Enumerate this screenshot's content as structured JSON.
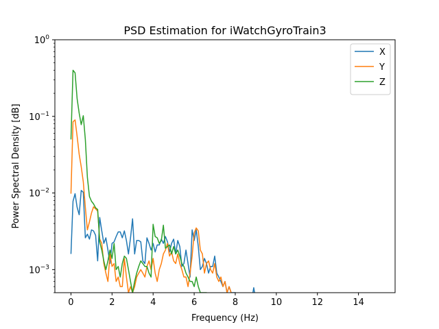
{
  "chart_data": {
    "type": "line",
    "title": "PSD Estimation for iWatchGyroTrain3",
    "xlabel": "Frequency (Hz)",
    "ylabel": "Power Spectral Density [dB]",
    "xlim": [
      -0.7833,
      15.7833
    ],
    "ylim": [
      0.0005,
      1
    ],
    "yscale": "log",
    "x_ticks": [
      0,
      2,
      4,
      6,
      8,
      10,
      12,
      14
    ],
    "x_tick_labels": [
      "0",
      "2",
      "4",
      "6",
      "8",
      "10",
      "12",
      "14"
    ],
    "y_ticks": [
      0.001,
      0.01,
      0.1,
      1
    ],
    "y_tick_labels": [
      "10",
      "10",
      "10",
      "10"
    ],
    "y_tick_exponents": [
      "−3",
      "−2",
      "−1",
      "0"
    ],
    "grid": false,
    "legend_position": "top-right",
    "series": [
      {
        "name": "X",
        "color": "#1f77b4",
        "x": [
          0,
          0.1,
          0.2,
          0.3,
          0.4,
          0.5,
          0.6,
          0.7,
          0.8,
          0.9,
          1.0,
          1.1,
          1.2,
          1.3,
          1.4,
          1.5,
          1.6,
          1.7,
          1.8,
          1.9,
          2.0,
          2.1,
          2.2,
          2.3,
          2.4,
          2.5,
          2.6,
          2.7,
          2.8,
          2.9,
          3.0,
          3.1,
          3.2,
          3.3,
          3.4,
          3.5,
          3.6,
          3.7,
          3.8,
          3.9,
          4.0,
          4.1,
          4.2,
          4.3,
          4.4,
          4.5,
          4.6,
          4.7,
          4.8,
          4.9,
          5.0,
          5.1,
          5.2,
          5.3,
          5.4,
          5.5,
          5.6,
          5.7,
          5.8,
          5.9,
          6.0,
          6.1,
          6.2,
          6.3,
          6.4,
          6.5,
          6.6,
          6.7,
          6.8,
          6.9,
          7.0,
          7.1,
          7.2,
          7.3,
          7.4,
          7.5,
          7.6,
          7.7,
          7.8,
          7.9,
          8.0,
          8.1,
          8.2,
          8.3,
          8.4,
          8.5,
          8.6,
          8.7,
          8.8,
          8.9,
          9.0
        ],
        "y": [
          0.0016,
          0.0078,
          0.0098,
          0.0065,
          0.0052,
          0.0108,
          0.0102,
          0.0026,
          0.0029,
          0.0025,
          0.0033,
          0.0032,
          0.0028,
          0.0013,
          0.0048,
          0.0032,
          0.0022,
          0.0026,
          0.0018,
          0.0012,
          0.0022,
          0.0023,
          0.0027,
          0.0031,
          0.0031,
          0.0026,
          0.0032,
          0.0024,
          0.0016,
          0.0026,
          0.0046,
          0.0016,
          0.0024,
          0.0024,
          0.0023,
          0.0013,
          0.0012,
          0.0026,
          0.0022,
          0.0018,
          0.0022,
          0.0017,
          0.0021,
          0.0021,
          0.0025,
          0.0022,
          0.0027,
          0.0023,
          0.0017,
          0.0022,
          0.0025,
          0.0016,
          0.0024,
          0.002,
          0.0011,
          0.0012,
          0.0018,
          0.0012,
          0.0008,
          0.0033,
          0.0024,
          0.0033,
          0.002,
          0.001,
          0.0011,
          0.0014,
          0.0012,
          0.0009,
          0.0011,
          0.0011,
          0.0015,
          0.0009,
          0.0008,
          0.0007,
          0.0006,
          0.0007,
          0.0005,
          0.0006,
          0.0005,
          0.0005,
          0.0005,
          0.0004,
          0.0004,
          0.0004,
          0.0004,
          0.0004,
          0.0004,
          0.0004,
          0.0004,
          0.00058,
          0.0004
        ]
      },
      {
        "name": "Y",
        "color": "#ff7f0e",
        "x": [
          0,
          0.1,
          0.2,
          0.3,
          0.4,
          0.5,
          0.6,
          0.7,
          0.8,
          0.9,
          1.0,
          1.1,
          1.2,
          1.3,
          1.4,
          1.5,
          1.6,
          1.7,
          1.8,
          1.9,
          2.0,
          2.1,
          2.2,
          2.3,
          2.4,
          2.5,
          2.6,
          2.7,
          2.8,
          2.9,
          3.0,
          3.1,
          3.2,
          3.3,
          3.4,
          3.5,
          3.6,
          3.7,
          3.8,
          3.9,
          4.0,
          4.1,
          4.2,
          4.3,
          4.4,
          4.5,
          4.6,
          4.7,
          4.8,
          4.9,
          5.0,
          5.1,
          5.2,
          5.3,
          5.4,
          5.5,
          5.6,
          5.7,
          5.8,
          5.9,
          6.0,
          6.1,
          6.2,
          6.3,
          6.4,
          6.5,
          6.6,
          6.7,
          6.8,
          6.9,
          7.0,
          7.1,
          7.2,
          7.3,
          7.4,
          7.5,
          7.6,
          7.7,
          7.8,
          7.9,
          8.0
        ],
        "y": [
          0.0098,
          0.085,
          0.09,
          0.055,
          0.032,
          0.022,
          0.014,
          0.0065,
          0.0033,
          0.0042,
          0.0055,
          0.0066,
          0.0062,
          0.0058,
          0.0025,
          0.0022,
          0.0012,
          0.0009,
          0.0007,
          0.0016,
          0.0011,
          0.0012,
          0.0007,
          0.0008,
          0.0006,
          0.0006,
          0.0014,
          0.0008,
          0.0005,
          0.0006,
          0.0005,
          0.0006,
          0.0008,
          0.0009,
          0.001,
          0.0009,
          0.0008,
          0.0011,
          0.0013,
          0.001,
          0.0014,
          0.0009,
          0.0007,
          0.001,
          0.0012,
          0.0016,
          0.0018,
          0.0022,
          0.0015,
          0.0017,
          0.0013,
          0.0012,
          0.0016,
          0.0012,
          0.001,
          0.0008,
          0.0008,
          0.0006,
          0.0009,
          0.0015,
          0.003,
          0.0035,
          0.0032,
          0.0018,
          0.0016,
          0.0009,
          0.0012,
          0.0013,
          0.001,
          0.0009,
          0.0012,
          0.0008,
          0.0007,
          0.0008,
          0.0006,
          0.0007,
          0.0005,
          0.0006,
          0.0005,
          0.0004,
          0.0004
        ]
      },
      {
        "name": "Z",
        "color": "#2ca02c",
        "x": [
          0,
          0.1,
          0.2,
          0.3,
          0.4,
          0.5,
          0.6,
          0.7,
          0.8,
          0.9,
          1.0,
          1.1,
          1.2,
          1.3,
          1.4,
          1.5,
          1.6,
          1.7,
          1.8,
          1.9,
          2.0,
          2.1,
          2.2,
          2.3,
          2.4,
          2.5,
          2.6,
          2.7,
          2.8,
          2.9,
          3.0,
          3.1,
          3.2,
          3.3,
          3.4,
          3.5,
          3.6,
          3.7,
          3.8,
          3.9,
          4.0,
          4.1,
          4.2,
          4.3,
          4.4,
          4.5,
          4.6,
          4.7,
          4.8,
          4.9,
          5.0,
          5.1,
          5.2,
          5.3,
          5.4,
          5.5,
          5.6,
          5.7,
          5.8,
          5.9,
          6.0,
          6.1,
          6.2,
          6.3,
          6.4,
          6.5,
          6.6,
          6.7,
          6.8,
          6.9,
          7.0,
          7.1,
          7.2,
          7.3,
          7.4,
          7.5,
          7.6,
          7.7,
          7.8,
          7.9,
          8.0
        ],
        "y": [
          0.05,
          0.4,
          0.37,
          0.17,
          0.11,
          0.078,
          0.102,
          0.05,
          0.016,
          0.009,
          0.0078,
          0.0072,
          0.0064,
          0.0061,
          0.0023,
          0.0018,
          0.0013,
          0.001,
          0.0013,
          0.0018,
          0.0014,
          0.0022,
          0.001,
          0.0011,
          0.0008,
          0.0012,
          0.0015,
          0.0014,
          0.001,
          0.0007,
          0.0005,
          0.0007,
          0.0009,
          0.0011,
          0.0013,
          0.0012,
          0.0011,
          0.0011,
          0.0009,
          0.0008,
          0.0039,
          0.0027,
          0.0026,
          0.0022,
          0.0024,
          0.0038,
          0.0019,
          0.002,
          0.0021,
          0.0016,
          0.002,
          0.0016,
          0.0018,
          0.0015,
          0.0012,
          0.0011,
          0.0009,
          0.0008,
          0.0007,
          0.0007,
          0.0006,
          0.0008,
          0.0006,
          0.0005,
          0.0005,
          0.0005,
          0.0005,
          0.0004,
          0.0004,
          0.0004,
          0.0004,
          0.0004,
          0.0004,
          0.0004,
          0.0004,
          0.0004,
          0.0004,
          0.0004,
          0.0004,
          0.0004,
          0.0004
        ]
      }
    ]
  }
}
